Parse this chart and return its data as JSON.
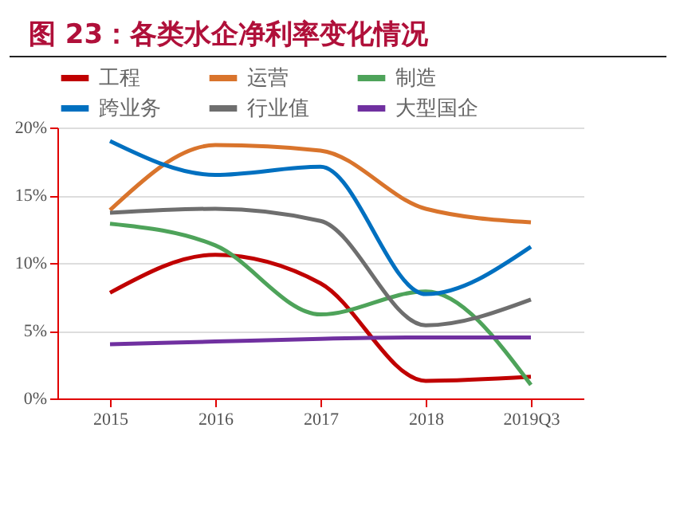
{
  "chart_data": {
    "type": "line",
    "title": "图 23：各类水企净利率变化情况",
    "categories": [
      "2015",
      "2016",
      "2017",
      "2018",
      "2019Q3"
    ],
    "series": [
      {
        "name": "工程",
        "color": "#c00000",
        "values": [
          7.8,
          10.6,
          8.5,
          1.3,
          1.6
        ]
      },
      {
        "name": "运营",
        "color": "#d9742c",
        "values": [
          13.9,
          18.7,
          18.3,
          14.0,
          13.0
        ]
      },
      {
        "name": "制造",
        "color": "#4ea35a",
        "values": [
          12.9,
          11.3,
          6.2,
          7.9,
          1.0
        ]
      },
      {
        "name": "跨业务",
        "color": "#0070c0",
        "values": [
          19.0,
          16.5,
          17.1,
          7.7,
          11.2
        ]
      },
      {
        "name": "行业值",
        "color": "#6e6e6e",
        "values": [
          13.7,
          14.0,
          13.1,
          5.4,
          7.3
        ]
      },
      {
        "name": "大型国企",
        "color": "#7030a0",
        "values": [
          4.0,
          4.2,
          4.4,
          4.5,
          4.5
        ]
      }
    ],
    "ylim": [
      0,
      20
    ],
    "yticks": [
      {
        "value": 0,
        "label": "0%"
      },
      {
        "value": 5,
        "label": "5%"
      },
      {
        "value": 10,
        "label": "10%"
      },
      {
        "value": 15,
        "label": "15%"
      },
      {
        "value": 20,
        "label": "20%"
      }
    ],
    "grid": "y",
    "legend": "top",
    "marker": "none",
    "line_style": "solid"
  }
}
